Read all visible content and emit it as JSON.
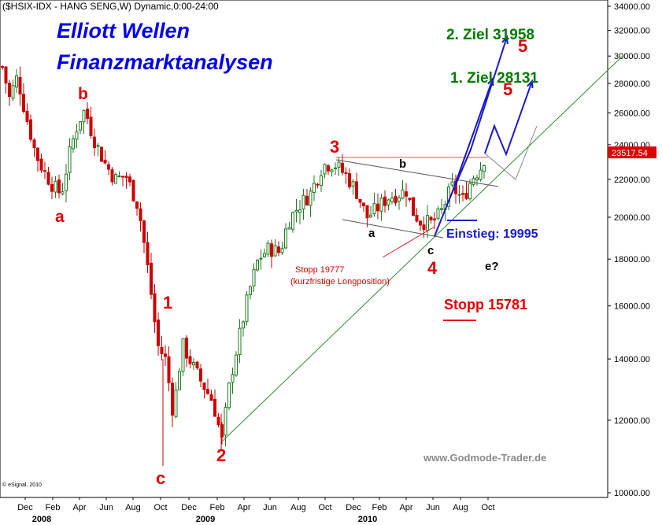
{
  "header": {
    "instrument": "($HSIX-IDX - HANG SENG,W) Dynamic,0:00-24:00"
  },
  "titles": {
    "line1": "Elliott Wellen",
    "line2": "Finanzmarktanalysen"
  },
  "watermark": "www.Godmode-Trader.de",
  "copyright": "© eSignal, 2010",
  "colors": {
    "up": "#1f7a1f",
    "down": "#cc0000",
    "target": "#007a00",
    "projection": "#1a1acc",
    "trend": "#2e8b2e",
    "current": "#e00000"
  },
  "chart_data": {
    "type": "candlestick",
    "scale": "log",
    "ylim": [
      10000,
      34000
    ],
    "y_ticks": [
      "34000.00",
      "32000.00",
      "30000.00",
      "28000.00",
      "26000.00",
      "24000.00",
      "22000.00",
      "20000.00",
      "18000.00",
      "16000.00",
      "14000.00",
      "12000.00",
      "10000.00"
    ],
    "x_month_labels": [
      "Dec",
      "Feb",
      "Apr",
      "Jun",
      "Aug",
      "Oct",
      "Dec",
      "Feb",
      "Apr",
      "Jun",
      "Aug",
      "Oct",
      "Dec",
      "Feb",
      "Apr",
      "Jun",
      "Aug",
      "Oct"
    ],
    "x_year_labels": [
      "2008",
      "2009",
      "2010"
    ],
    "current_price_label": "23517.54",
    "weekly_closes_summary": [
      {
        "date": "2007-11",
        "close": 29000
      },
      {
        "date": "2008-01",
        "close": 23500
      },
      {
        "date": "2008-01-end",
        "close": 21500
      },
      {
        "date": "2008-03",
        "close": 21700
      },
      {
        "date": "2008-05",
        "close": 25800
      },
      {
        "date": "2008-08",
        "close": 20900
      },
      {
        "date": "2008-10",
        "close": 11000
      },
      {
        "date": "2008-11",
        "close": 14000
      },
      {
        "date": "2009-01",
        "close": 13300
      },
      {
        "date": "2009-03",
        "close": 11350
      },
      {
        "date": "2009-06",
        "close": 18400
      },
      {
        "date": "2009-08",
        "close": 19900
      },
      {
        "date": "2009-11",
        "close": 22900
      },
      {
        "date": "2010-02",
        "close": 19900
      },
      {
        "date": "2010-04",
        "close": 22000
      },
      {
        "date": "2010-05",
        "close": 19300
      },
      {
        "date": "2010-08",
        "close": 21000
      },
      {
        "date": "2010-10",
        "close": 23517
      }
    ],
    "annotations": {
      "wave_a_2008": "a",
      "wave_b_2008": "b",
      "wave_c_2008": "c",
      "wave_1": "1",
      "wave_2": "2",
      "wave_3": "3",
      "wave_4": "4",
      "wave_5_top": "5",
      "wave_5_mid": "5",
      "sub_a": "a",
      "sub_b": "b",
      "sub_c": "c",
      "sub_e": "e?",
      "target1": "1. Ziel 28131",
      "target2": "2. Ziel 31958",
      "entry": "Einstieg: 19995",
      "stop_short_1": "Stopp 19777",
      "stop_short_2": "(kurzfristige Longposition)",
      "stop_main": "Stopp 15781"
    }
  }
}
